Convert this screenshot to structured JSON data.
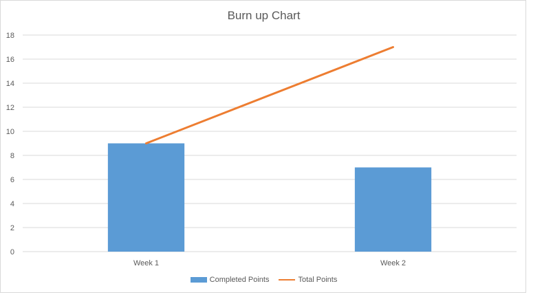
{
  "chart_data": {
    "type": "bar",
    "title": "Burn up Chart",
    "categories": [
      "Week 1",
      "Week 2"
    ],
    "series": [
      {
        "name": "Completed Points",
        "type": "bar",
        "values": [
          9,
          7
        ],
        "color": "#5b9bd5"
      },
      {
        "name": "Total Points",
        "type": "line",
        "values": [
          9,
          17
        ],
        "color": "#ed7d31"
      }
    ],
    "ylim": [
      0,
      18
    ],
    "yticks": [
      0,
      2,
      4,
      6,
      8,
      10,
      12,
      14,
      16,
      18
    ],
    "grid": true,
    "legend_position": "bottom",
    "xlabel": "",
    "ylabel": ""
  }
}
